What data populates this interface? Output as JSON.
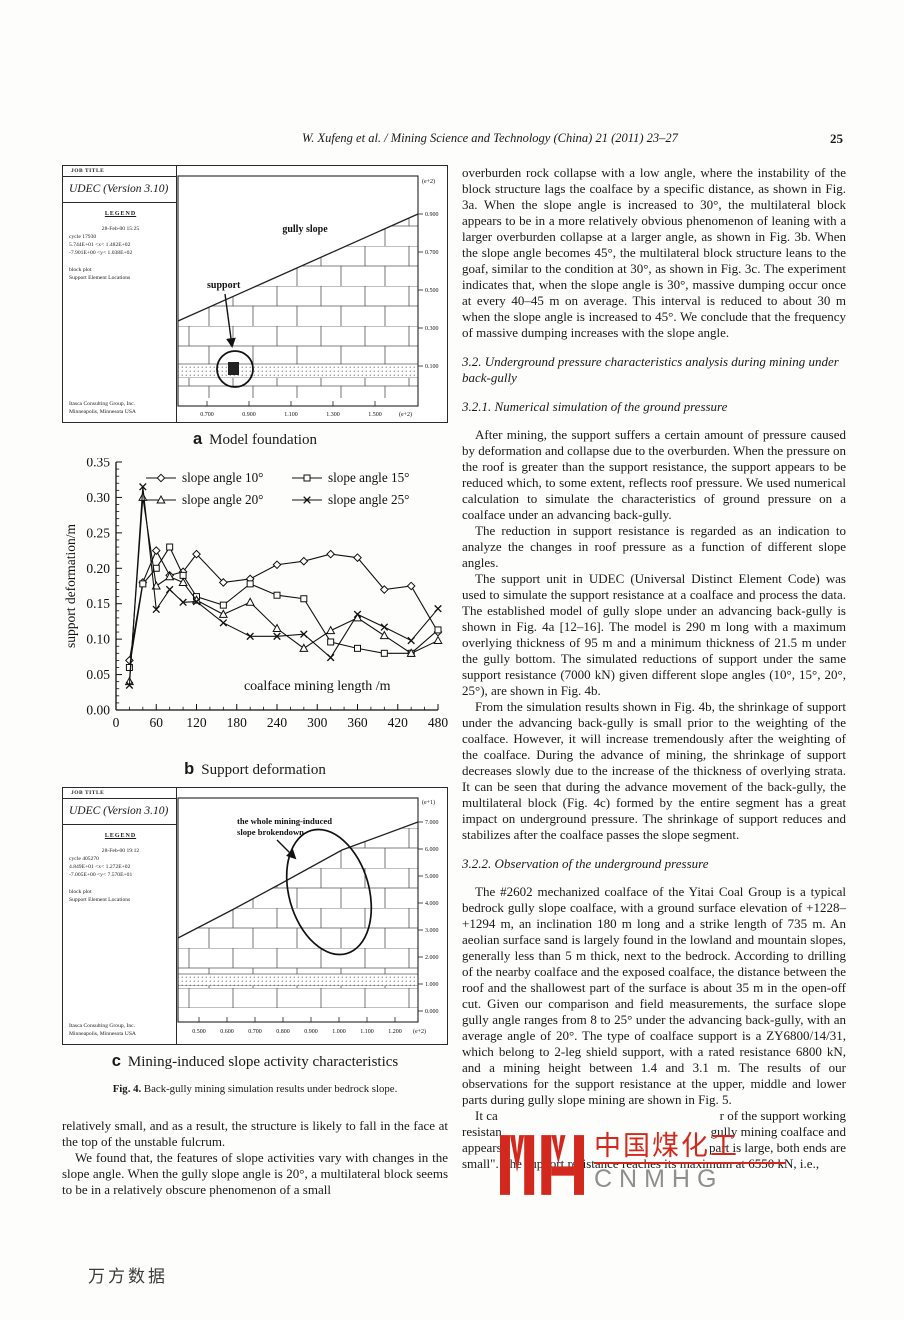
{
  "page": {
    "header_citation": "W. Xufeng et al. / Mining Science and Technology (China) 21 (2011) 23–27",
    "page_number": "25",
    "bottom_watermark": "万方数据"
  },
  "figure_a": {
    "job_title": "JOB TITLE",
    "version": "UDEC (Version 3.10)",
    "legend_title": "LEGEND",
    "date_line": "28-Feb-00  15:25",
    "cycle_line": "cycle  17930",
    "x_range": "5.744E+01 <x<  1.482E+02",
    "y_range": "-7.901E+00 <y<  1.038E+02",
    "plot_type": "block plot",
    "plot_type2": "Support Element Locations",
    "org1": "Itasca Consulting Group, Inc.",
    "org2": "Minneapolis, Minnesota  USA",
    "label_gully_slope": "gully slope",
    "label_support": "support",
    "x_ticks": [
      "0.700",
      "0.900",
      "1.100",
      "1.300",
      "1.500"
    ],
    "x_unit": "(e+2)",
    "y_ticks": [
      "0.900",
      "0.700",
      "0.500",
      "0.300",
      "0.100"
    ],
    "y_unit": "(e+2)",
    "caption_letter": "a",
    "caption_text": "Model foundation"
  },
  "figure_b": {
    "caption_letter": "b",
    "caption_text": "Support deformation"
  },
  "figure_c": {
    "job_title": "JOB TITLE",
    "version": "UDEC (Version 3.10)",
    "legend_title": "LEGEND",
    "date_line": "28-Feb-00  19:12",
    "cycle_line": "cycle  405270",
    "x_range": "4.849E+01 <x<  1.272E+02",
    "y_range": "-7.005E+00 <y<  7.570E+01",
    "plot_type": "block plot",
    "plot_type2": "Support Element Locations",
    "org1": "Itasca Consulting Group, Inc.",
    "org2": "Minneapolis, Minnesota  USA",
    "annotation_line1": "the whole mining-induced",
    "annotation_line2": "slope brokendown",
    "x_ticks": [
      "0.500",
      "0.600",
      "0.700",
      "0.800",
      "0.900",
      "1.000",
      "1.100",
      "1.200"
    ],
    "x_unit": "(e+2)",
    "y_ticks": [
      "7.000",
      "6.000",
      "5.000",
      "4.000",
      "3.000",
      "2.000",
      "1.000",
      "0.000"
    ],
    "y_unit": "(e+1)",
    "caption_letter": "c",
    "caption_text": "Mining-induced slope activity characteristics"
  },
  "fig4_caption": {
    "label": "Fig. 4.",
    "text": "Back-gully mining simulation results under bedrock slope."
  },
  "left_column": {
    "para1": "relatively small, and as a result, the structure is likely to fall in the face at the top of the unstable fulcrum.",
    "para2": "We found that, the features of slope activities vary with changes in the slope angle. When the gully slope angle is 20°, a multilateral block seems to be in a relatively obscure phenomenon of a small"
  },
  "right_column": {
    "para1": "overburden rock collapse with a low angle, where the instability of the block structure lags the coalface by a specific distance, as shown in Fig. 3a. When the slope angle is increased to 30°, the multilateral block appears to be in a more relatively obvious phenomenon of leaning with a larger overburden collapse at a larger angle, as shown in Fig. 3b. When the slope angle becomes 45°, the multilateral block structure leans to the goaf, similar to the condition at 30°, as shown in Fig. 3c. The experiment indicates that, when the slope angle is 30°, massive dumping occur once at every 40–45 m on average. This interval is reduced to about 30 m when the slope angle is increased to 45°. We conclude that the frequency of massive dumping increases with the slope angle.",
    "heading_3_2": "3.2. Underground pressure characteristics analysis during mining under back-gully",
    "heading_3_2_1": "3.2.1. Numerical simulation of the ground pressure",
    "para2": "After mining, the support suffers a certain amount of pressure caused by deformation and collapse due to the overburden. When the pressure on the roof is greater than the support resistance, the support appears to be reduced which, to some extent, reflects roof pressure. We used numerical calculation to simulate the characteristics of ground pressure on a coalface under an advancing back-gully.",
    "para3": "The reduction in support resistance is regarded as an indication to analyze the changes in roof pressure as a function of different slope angles.",
    "para4": "The support unit in UDEC (Universal Distinct Element Code) was used to simulate the support resistance at a coalface and process the data. The established model of gully slope under an advancing back-gully is shown in Fig. 4a [12–16]. The model is 290 m long with a maximum overlying thickness of 95 m and a minimum thickness of 21.5 m under the gully bottom. The simulated reductions of support under the same support resistance (7000 kN) given different slope angles (10°, 15°, 20°, 25°), are shown in Fig. 4b.",
    "para5": "From the simulation results shown in Fig. 4b, the shrinkage of support under the advancing back-gully is small prior to the weighting of the coalface. However, it will increase tremendously after the weighting of the coalface. During the advance of mining, the shrinkage of support decreases slowly due to the increase of the thickness of overlying strata. It can be seen that during the advance movement of the back-gully, the multilateral block (Fig. 4c) formed by the entire segment has a great impact on underground pressure. The shrinkage of support reduces and stabilizes after the coalface passes the slope segment.",
    "heading_3_2_2": "3.2.2. Observation of the underground pressure",
    "para6": "The #2602 mechanized coalface of the Yitai Coal Group is a typical bedrock gully slope coalface, with a ground surface elevation of +1228–+1294 m, an inclination 180 m long and a strike length of 735 m. An aeolian surface sand is largely found in the lowland and mountain slopes, generally less than 5 m thick, next to the bedrock. According to drilling of the nearby coalface and the exposed coalface, the distance between the roof and the shallowest part of the surface is about 35 m in the open-off cut. Given our comparison and field measurements, the surface slope gully angle ranges from 8 to 25° under the advancing back-gully, with an average angle of 20°. The type of coalface support is a ZY6800/14/31, which belong to 2-leg shield support, with a rated resistance 6800 kN, and a mining height between 1.4 and 3.1 m. The results of our observations for the support resistance at the upper, middle and lower parts during gully slope mining are shown in Fig. 5.",
    "para7_fragments": [
      {
        "left": "It ca",
        "right": "r of the support working"
      },
      {
        "left": "resistan",
        "right": "gully mining coalface and"
      },
      {
        "left": "appears",
        "right": "part is large, both ends are"
      }
    ],
    "para7_last": "small\". The support resistance reaches its maximum at 6550 kN, i.e.,"
  },
  "watermark": {
    "cn_text": "中国煤化工",
    "latin_text": "CNMHG",
    "red": "#d3281e",
    "gray": "#8f8f8f"
  },
  "chart_data": {
    "type": "line",
    "title": "",
    "xlabel": "coalface mining length /m",
    "ylabel": "support deformation/m",
    "xlim": [
      0,
      480
    ],
    "ylim": [
      0,
      0.35
    ],
    "x_major_ticks": [
      0,
      60,
      120,
      180,
      240,
      300,
      360,
      420,
      480
    ],
    "y_major_ticks": [
      0,
      0.05,
      0.1,
      0.15,
      0.2,
      0.25,
      0.3,
      0.35
    ],
    "grid": false,
    "legend_position": "top-inside",
    "x": [
      20,
      40,
      60,
      80,
      100,
      120,
      160,
      200,
      240,
      280,
      320,
      360,
      400,
      440,
      480
    ],
    "series": [
      {
        "name": "slope angle 10°",
        "marker": "diamond",
        "values": [
          0.07,
          0.18,
          0.225,
          0.19,
          0.195,
          0.22,
          0.18,
          0.185,
          0.205,
          0.21,
          0.22,
          0.215,
          0.17,
          0.175,
          0.11
        ]
      },
      {
        "name": "slope angle 15°",
        "marker": "square",
        "values": [
          0.06,
          0.178,
          0.2,
          0.23,
          0.19,
          0.16,
          0.148,
          0.178,
          0.162,
          0.157,
          0.096,
          0.087,
          0.08,
          0.08,
          0.113
        ]
      },
      {
        "name": "slope angle 20°",
        "marker": "triangle",
        "values": [
          0.04,
          0.3,
          0.175,
          0.188,
          0.18,
          0.155,
          0.135,
          0.152,
          0.115,
          0.087,
          0.112,
          0.13,
          0.105,
          0.08,
          0.098
        ]
      },
      {
        "name": "slope angle 25°",
        "marker": "x",
        "values": [
          0.035,
          0.315,
          0.142,
          0.17,
          0.152,
          0.153,
          0.123,
          0.104,
          0.104,
          0.107,
          0.074,
          0.135,
          0.117,
          0.098,
          0.143
        ]
      }
    ]
  }
}
